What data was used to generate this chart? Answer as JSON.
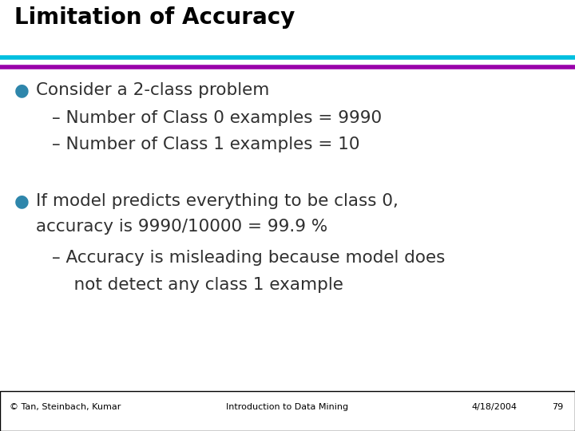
{
  "title": "Limitation of Accuracy",
  "title_color": "#000000",
  "title_fontsize": 20,
  "bg_color": "#ffffff",
  "separator_color1": "#00BFDF",
  "separator_color2": "#9900AA",
  "bullet_color": "#2E86AB",
  "body_color": "#303030",
  "bullet1_main": "Consider a 2-class problem",
  "bullet1_sub1": "– Number of Class 0 examples = 9990",
  "bullet1_sub2": "– Number of Class 1 examples = 10",
  "bullet2_main1": "If model predicts everything to be class 0,",
  "bullet2_main2": "accuracy is 9990/10000 = 99.9 %",
  "bullet2_sub1": "– Accuracy is misleading because model does",
  "bullet2_sub2": "    not detect any class 1 example",
  "footer_left": "© Tan, Steinbach, Kumar",
  "footer_center": "Introduction to Data Mining",
  "footer_right": "4/18/2004",
  "footer_page": "79",
  "footer_fontsize": 8,
  "body_fontsize": 15.5
}
